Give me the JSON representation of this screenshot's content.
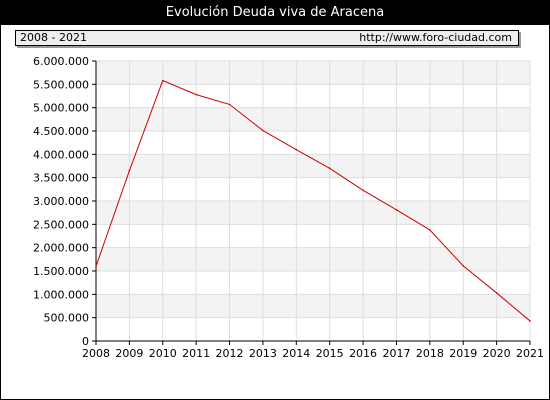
{
  "header": {
    "title": "Evolución Deuda viva de Aracena",
    "range_label": "2008 - 2021",
    "source_url": "http://www.foro-ciudad.com"
  },
  "colors": {
    "line": "#cc0000",
    "band": "#f3f3f3",
    "grid": "#dddddd"
  },
  "chart_data": {
    "type": "line",
    "title": "Evolución Deuda viva de Aracena",
    "xlabel": "",
    "ylabel": "",
    "categories": [
      "2008",
      "2009",
      "2010",
      "2011",
      "2012",
      "2013",
      "2014",
      "2015",
      "2016",
      "2017",
      "2018",
      "2019",
      "2020",
      "2021"
    ],
    "series": [
      {
        "values": [
          1600000,
          3650000,
          5580000,
          5280000,
          5070000,
          4510000,
          4100000,
          3700000,
          3230000,
          2810000,
          2380000,
          1610000,
          1030000,
          430000
        ]
      }
    ],
    "ylim": [
      0,
      6000000
    ],
    "yticks": [
      0,
      500000,
      1000000,
      1500000,
      2000000,
      2500000,
      3000000,
      3500000,
      4000000,
      4500000,
      5000000,
      5500000,
      6000000
    ],
    "ytick_labels": [
      "0",
      "500.000",
      "1.000.000",
      "1.500.000",
      "2.000.000",
      "2.500.000",
      "3.000.000",
      "3.500.000",
      "4.000.000",
      "4.500.000",
      "5.000.000",
      "5.500.000",
      "6.000.000"
    ],
    "grid": true,
    "legend": "none"
  }
}
